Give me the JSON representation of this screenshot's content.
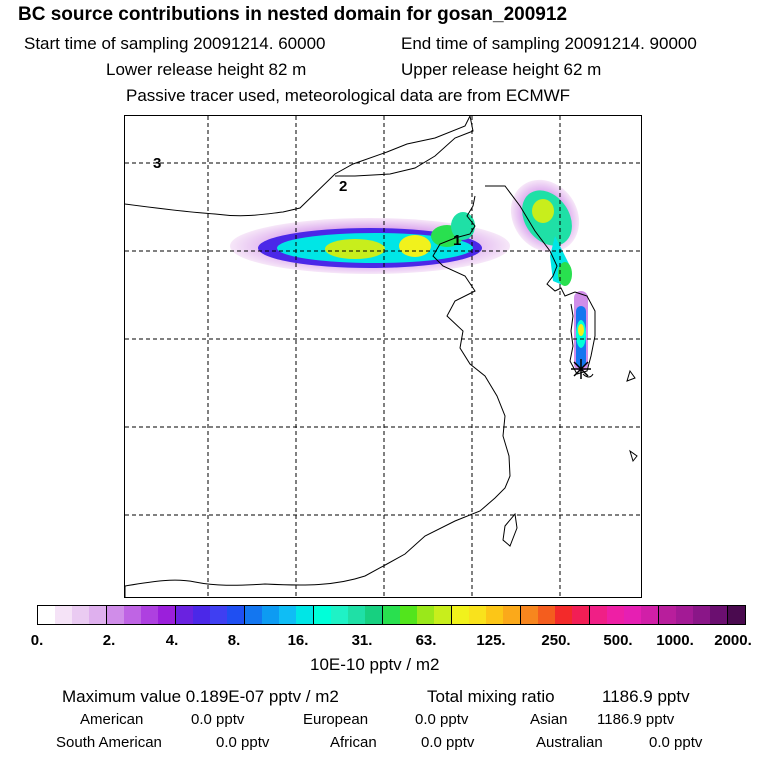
{
  "header": {
    "title": "BC  source contributions in nested domain for gosan_200912",
    "start_label": "Start time of sampling 20091214. 60000",
    "end_label": "End time of sampling 20091214. 90000",
    "lower_label": "Lower release height   82 m",
    "upper_label": "Upper release height   62 m",
    "tracer_note": "Passive tracer used, meteorological data are from ECMWF"
  },
  "map": {
    "region_labels": [
      "1",
      "2",
      "3"
    ],
    "receptor_icon": "star-icon"
  },
  "colorbar": {
    "tick_labels": [
      "0.",
      "2.",
      "4.",
      "8.",
      "16.",
      "31.",
      "63.",
      "125.",
      "250.",
      "500.",
      "1000.",
      "2000."
    ],
    "units": "10E-10 pptv / m2",
    "colors": [
      "#ffffff",
      "#f5e3f7",
      "#eacbf2",
      "#dfb0ee",
      "#d08de9",
      "#bf64e4",
      "#ae40e0",
      "#9b1fdb",
      "#6a22e0",
      "#4b28e8",
      "#3f3ff2",
      "#1f4ff2",
      "#1376f0",
      "#0d9bf2",
      "#0fbdf5",
      "#00e6e6",
      "#00ffd9",
      "#1ff2c6",
      "#1fe0a6",
      "#17d080",
      "#29e04f",
      "#52e51c",
      "#9ae81a",
      "#c8ee1c",
      "#f1f21c",
      "#f9e21c",
      "#fcc617",
      "#fba91a",
      "#f7861e",
      "#f45d1e",
      "#f32a2a",
      "#f21e55",
      "#f01f86",
      "#ee1fa5",
      "#e61fb3",
      "#d11fa8",
      "#b81e9c",
      "#a31a95",
      "#8a1688",
      "#6b0f70",
      "#4a0a4f"
    ]
  },
  "stats": {
    "max_label": "Maximum value  0.189E-07 pptv / m2",
    "total_label": "Total mixing ratio",
    "total_value": "1186.9 pptv",
    "regions": [
      {
        "name": "American",
        "value": "0.0 pptv"
      },
      {
        "name": "European",
        "value": "0.0 pptv"
      },
      {
        "name": "Asian",
        "value": "1186.9 pptv"
      },
      {
        "name": "South American",
        "value": "0.0 pptv"
      },
      {
        "name": "African",
        "value": "0.0 pptv"
      },
      {
        "name": "Australian",
        "value": "0.0 pptv"
      }
    ]
  }
}
